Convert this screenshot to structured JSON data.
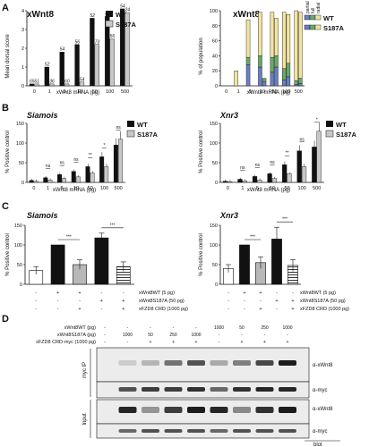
{
  "panels": {
    "a": "A",
    "b": "B",
    "c": "C",
    "d": "D"
  },
  "colors": {
    "wt": "#111111",
    "s187a": "#c8c8c8",
    "partial": "#6a7fc0",
    "full": "#6aa86a",
    "radial": "#f2e3a0"
  },
  "chart_data": [
    {
      "id": "A1",
      "type": "bar",
      "title": "xWnt8",
      "xlabel": "xWnt8 mRNA (pg)",
      "ylabel": "Mean dorsal score",
      "categories": [
        "0",
        "1",
        "5",
        "10",
        "50",
        "100",
        "500"
      ],
      "ylim": [
        0,
        4
      ],
      "yticks": [
        "0",
        "1",
        "2",
        "3",
        "4"
      ],
      "series": [
        {
          "name": "WT",
          "values": [
            0.1,
            1.0,
            1.8,
            2.2,
            3.6,
            3.7,
            4.1
          ]
        },
        {
          "name": "S187A",
          "values": [
            0.1,
            0.1,
            0.1,
            0.2,
            2.2,
            2.5,
            3.9
          ]
        }
      ],
      "bar_labels": [
        [
          "65",
          "52",
          "54",
          "56",
          "52",
          "46",
          "54"
        ],
        [
          "61",
          "36",
          "60",
          "54",
          "73",
          "56",
          "24"
        ]
      ]
    },
    {
      "id": "A2",
      "type": "bar",
      "title": "xWnt8",
      "xlabel": "xWnt8 mRNA (pg)",
      "ylabel": "% of population",
      "categories": [
        "0",
        "1",
        "5",
        "10",
        "50",
        "100",
        "500"
      ],
      "ylim": [
        0,
        100
      ],
      "yticks": [
        "0",
        "20",
        "40",
        "60",
        "80",
        "100"
      ],
      "stack_legend": [
        "partial",
        "full",
        "radial"
      ],
      "series": [
        {
          "name": "WT",
          "partial": [
            0,
            0,
            28,
            25,
            18,
            8,
            2
          ],
          "full": [
            0,
            0,
            10,
            15,
            20,
            15,
            5
          ],
          "radial": [
            0,
            20,
            50,
            58,
            60,
            75,
            93
          ]
        },
        {
          "name": "S187A",
          "partial": [
            0,
            0,
            0,
            5,
            25,
            12,
            3
          ],
          "full": [
            0,
            0,
            0,
            5,
            15,
            18,
            7
          ],
          "radial": [
            0,
            0,
            0,
            0,
            50,
            65,
            88
          ]
        }
      ]
    },
    {
      "id": "B1",
      "type": "bar",
      "title": "Siamois",
      "xlabel": "xWnt8 mRNA (pg)",
      "ylabel": "% Positive control",
      "categories": [
        "0",
        "1",
        "5",
        "10",
        "50",
        "100",
        "500"
      ],
      "ylim": [
        0,
        150
      ],
      "yticks": [
        "0",
        "50",
        "100",
        "150"
      ],
      "series": [
        {
          "name": "WT",
          "values": [
            5,
            12,
            20,
            28,
            40,
            65,
            95
          ]
        },
        {
          "name": "S187A",
          "values": [
            3,
            6,
            10,
            14,
            24,
            40,
            110
          ]
        }
      ],
      "significance": [
        "ns",
        "ns",
        "ns",
        "**",
        "*",
        "ns"
      ]
    },
    {
      "id": "B2",
      "type": "bar",
      "title": "Xnr3",
      "xlabel": "xWnt8 mRNA (pg)",
      "ylabel": "% Positive control",
      "categories": [
        "0",
        "1",
        "5",
        "10",
        "50",
        "100",
        "500"
      ],
      "ylim": [
        0,
        150
      ],
      "yticks": [
        "0",
        "50",
        "100",
        "150"
      ],
      "series": [
        {
          "name": "WT",
          "values": [
            3,
            8,
            15,
            22,
            45,
            80,
            90
          ]
        },
        {
          "name": "S187A",
          "values": [
            2,
            4,
            6,
            10,
            22,
            40,
            130
          ]
        }
      ],
      "significance": [
        "ns",
        "ns",
        "ns",
        "**",
        "ns",
        "*"
      ]
    },
    {
      "id": "C1",
      "type": "bar",
      "title": "Siamois",
      "ylabel": "% Positive control",
      "ylim": [
        0,
        150
      ],
      "yticks": [
        "0",
        "50",
        "100",
        "150"
      ],
      "values": [
        35,
        100,
        50,
        118,
        45
      ],
      "errors": [
        10,
        0,
        12,
        12,
        12
      ],
      "fills": [
        "white",
        "black",
        "gray",
        "black",
        "hatch"
      ],
      "significance": [
        {
          "from": 1,
          "to": 2,
          "label": "***"
        },
        {
          "from": 3,
          "to": 4,
          "label": "***"
        }
      ]
    },
    {
      "id": "C2",
      "type": "bar",
      "title": "Xnr3",
      "ylabel": "% Positive control",
      "ylim": [
        0,
        150
      ],
      "yticks": [
        "0",
        "50",
        "100",
        "150"
      ],
      "values": [
        40,
        100,
        55,
        115,
        48
      ],
      "errors": [
        10,
        0,
        15,
        30,
        15
      ],
      "fills": [
        "white",
        "black",
        "gray",
        "black",
        "hatch"
      ],
      "significance": [
        {
          "from": 1,
          "to": 2,
          "label": "***"
        },
        {
          "from": 3,
          "to": 4,
          "label": "***"
        }
      ]
    }
  ],
  "treatment_table": {
    "rows": [
      {
        "label": "xWnt8WT (5 pg)",
        "signs": [
          "-",
          "+",
          "+",
          "-",
          "-"
        ]
      },
      {
        "label": "xWnt8S187A (50 pg)",
        "signs": [
          "-",
          "-",
          "-",
          "+",
          "+"
        ]
      },
      {
        "label": "xFZD8 CRD (1000 pg)",
        "signs": [
          "-",
          "-",
          "+",
          "-",
          "+"
        ]
      }
    ]
  },
  "blot": {
    "row_labels": [
      "xWnt8WT (pg)",
      "xWnt8S187A (pg)",
      "xFZD8 CRD-myc (1000 pg)"
    ],
    "rows": [
      [
        "-",
        "-",
        "-",
        "-",
        "-",
        "1000",
        "50",
        "250",
        "1000"
      ],
      [
        "-",
        "1000",
        "50",
        "250",
        "1000",
        "-",
        "-",
        "-",
        "-"
      ],
      [
        "-",
        "-",
        "+",
        "+",
        "+",
        "-",
        "+",
        "+",
        "+"
      ]
    ],
    "groups": [
      "myc IP",
      "Input"
    ],
    "antibodies": [
      "α-xWnt8",
      "α-myc",
      "α-xWnt8",
      "α-myc"
    ],
    "footer": "blot"
  }
}
